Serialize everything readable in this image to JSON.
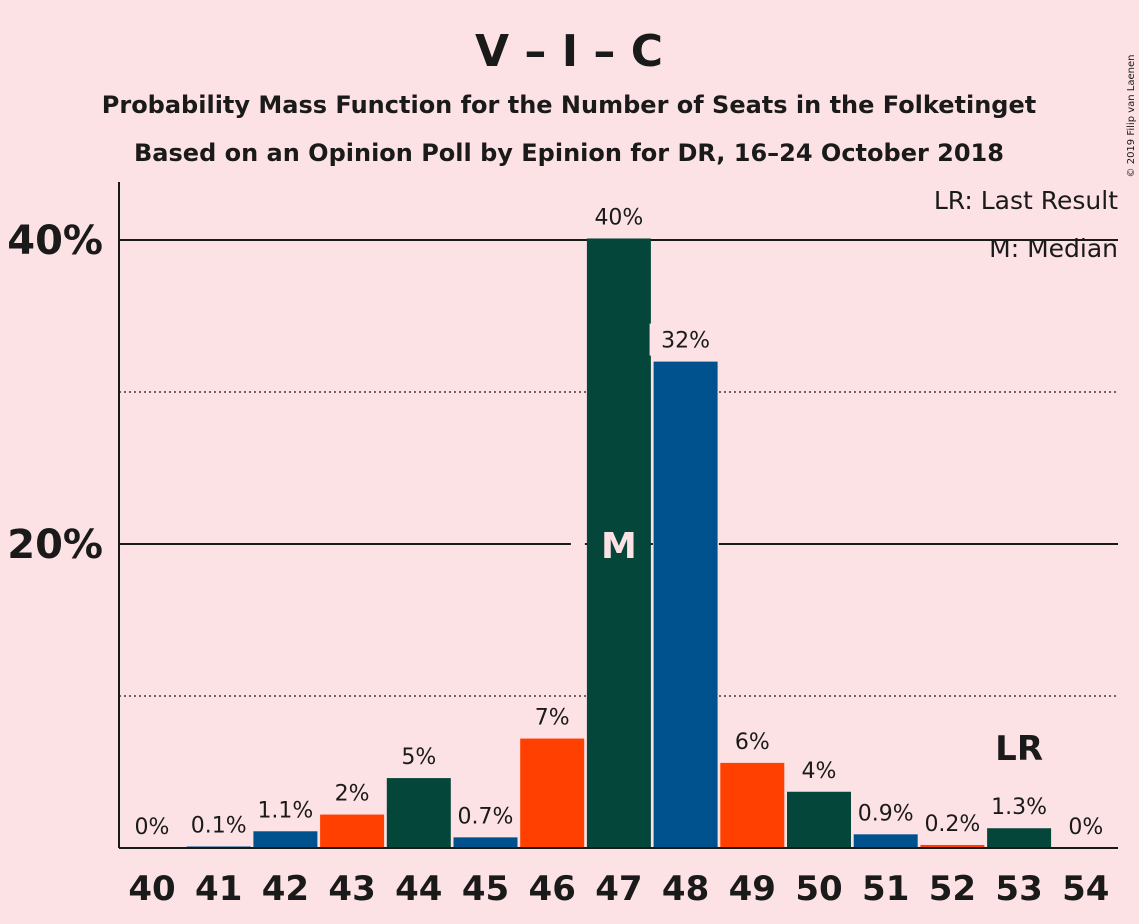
{
  "title": "V – I – C",
  "subtitle_1": "Probability Mass Function for the Number of Seats in the Folketinget",
  "subtitle_2": "Based on an Opinion Poll by Epinion for DR, 16–24 October 2018",
  "copyright": "© 2019 Filip van Laenen",
  "legend": {
    "last_result": "LR: Last Result",
    "median": "M: Median"
  },
  "colors": {
    "background": "#fde2e5",
    "V": "#00528f",
    "I": "#ff4000",
    "C": "#05463a"
  },
  "chart_data": {
    "type": "bar",
    "title": "V – I – C",
    "categories": [
      "40",
      "41",
      "42",
      "43",
      "44",
      "45",
      "46",
      "47",
      "48",
      "49",
      "50",
      "51",
      "52",
      "53",
      "54"
    ],
    "values": [
      0,
      0.1,
      1.1,
      2.2,
      4.6,
      0.7,
      7.2,
      40.1,
      32.0,
      5.6,
      3.7,
      0.9,
      0.2,
      1.3,
      0
    ],
    "labels": [
      "0%",
      "0.1%",
      "1.1%",
      "2%",
      "5%",
      "0.7%",
      "7%",
      "40%",
      "32%",
      "6%",
      "4%",
      "0.9%",
      "0.2%",
      "1.3%",
      "0%"
    ],
    "bar_colors": [
      "#05463a",
      "#00528f",
      "#00528f",
      "#ff4000",
      "#05463a",
      "#00528f",
      "#ff4000",
      "#05463a",
      "#00528f",
      "#ff4000",
      "#05463a",
      "#00528f",
      "#ff4000",
      "#05463a",
      "#00528f"
    ],
    "ylim": [
      0,
      42
    ],
    "yticks": [
      {
        "value": 20,
        "label": "20%"
      },
      {
        "value": 40,
        "label": "40%"
      }
    ],
    "minor_gridlines": [
      10,
      30
    ],
    "median": {
      "category": "47",
      "label": "M"
    },
    "last_result": {
      "category": "53",
      "label": "LR"
    }
  }
}
